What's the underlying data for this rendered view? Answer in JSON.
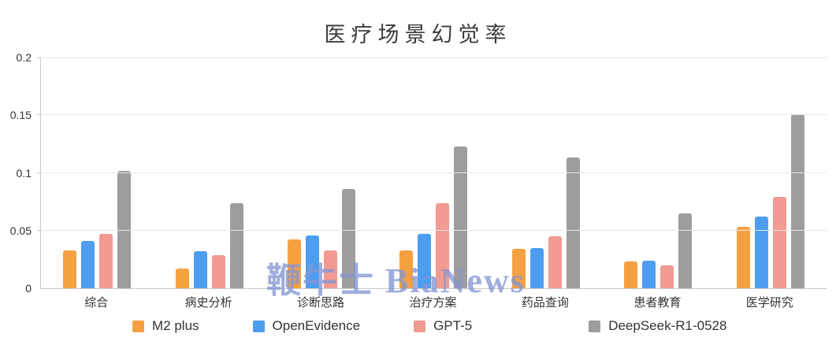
{
  "watermark": "鞭牛士 BiaNews",
  "chart_data": {
    "type": "bar",
    "title": "医疗场景幻觉率",
    "categories": [
      "综合",
      "病史分析",
      "诊断思路",
      "治疗方案",
      "药品查询",
      "患者教育",
      "医学研究"
    ],
    "series": [
      {
        "name": "M2 plus",
        "color": "#F5A142",
        "values": [
          0.033,
          0.017,
          0.042,
          0.033,
          0.034,
          0.023,
          0.053
        ]
      },
      {
        "name": "OpenEvidence",
        "color": "#4D9EF0",
        "values": [
          0.041,
          0.032,
          0.046,
          0.047,
          0.035,
          0.024,
          0.062
        ]
      },
      {
        "name": "GPT-5",
        "color": "#F19B92",
        "values": [
          0.047,
          0.029,
          0.033,
          0.074,
          0.045,
          0.02,
          0.079
        ]
      },
      {
        "name": "DeepSeek-R1-0528",
        "color": "#9D9D9D",
        "values": [
          0.102,
          0.074,
          0.086,
          0.123,
          0.113,
          0.065,
          0.151
        ]
      }
    ],
    "ylim": [
      0,
      0.2
    ],
    "yticks": [
      0,
      0.05,
      0.1,
      0.15,
      0.2
    ],
    "grid": true,
    "legend_position": "bottom",
    "colors_note": {
      "grid_color": "#e7e7e7",
      "axis_color": "#c9c9c9",
      "text_color": "#333333",
      "watermark_color": "#8496D4"
    }
  }
}
